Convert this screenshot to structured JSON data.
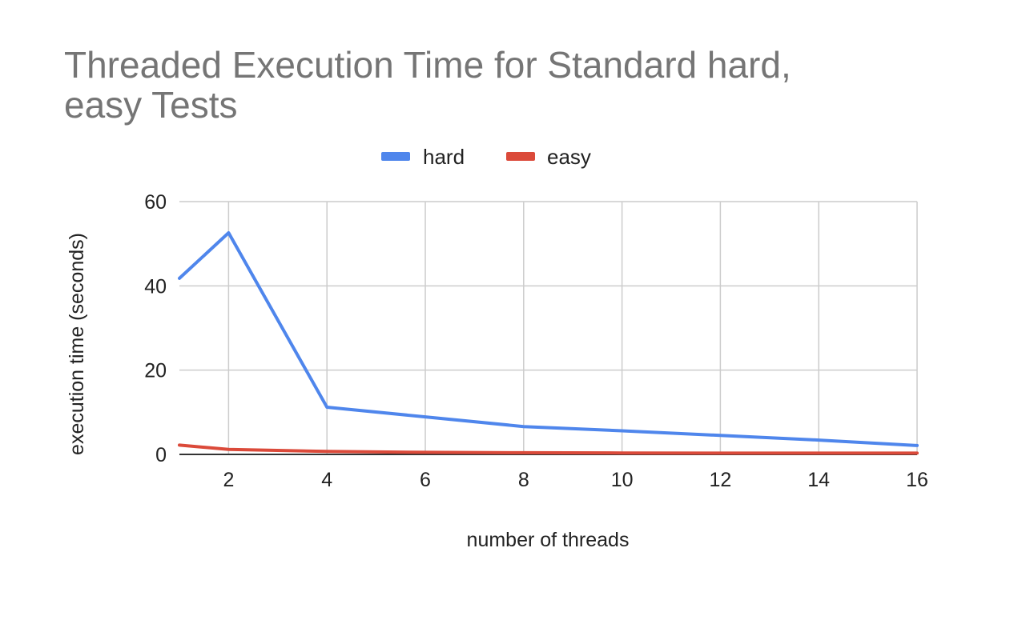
{
  "chart_data": {
    "type": "line",
    "title_lines": [
      "Threaded Execution Time for Standard hard,",
      "easy Tests"
    ],
    "xlabel": "number of threads",
    "ylabel": "execution time (seconds)",
    "x": [
      1,
      2,
      4,
      6,
      8,
      10,
      12,
      14,
      16
    ],
    "xlim": [
      1,
      16
    ],
    "x_ticks": [
      2,
      4,
      6,
      8,
      10,
      12,
      14,
      16
    ],
    "ylim": [
      0,
      60
    ],
    "y_ticks": [
      0,
      20,
      40,
      60
    ],
    "grid": true,
    "legend_position": "top-center",
    "series": [
      {
        "name": "hard",
        "color": "#4f86ec",
        "values": [
          41.8,
          52.6,
          11.2,
          8.9,
          6.6,
          5.6,
          4.5,
          3.4,
          2.1
        ]
      },
      {
        "name": "easy",
        "color": "#db4a3a",
        "values": [
          2.2,
          1.2,
          0.7,
          0.5,
          0.4,
          0.35,
          0.3,
          0.3,
          0.3
        ]
      }
    ]
  }
}
